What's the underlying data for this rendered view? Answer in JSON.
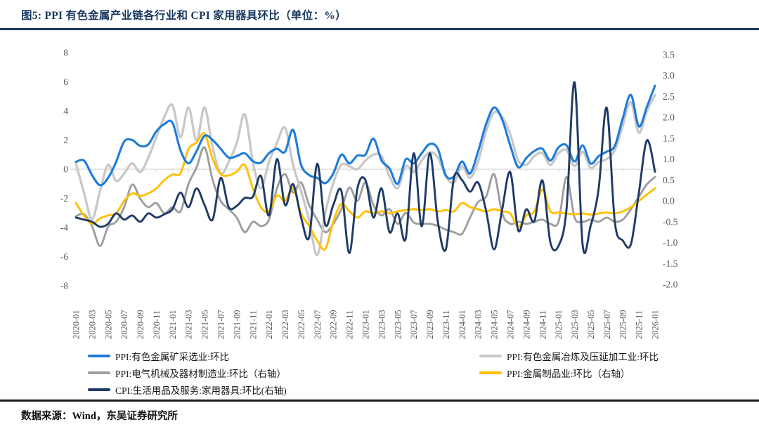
{
  "header": {
    "title": "图5:  PPI 有色金属产业链各行业和 CPI 家用器具环比（单位：%）"
  },
  "footer": {
    "source_text": "数据来源：Wind，东吴证券研究所"
  },
  "colors": {
    "title_navy": "#17375E",
    "axis_text": "#595959",
    "axis_line": "#D6D6D6"
  },
  "chart_data": {
    "type": "line",
    "title": "PPI 有色金属产业链各行业和 CPI 家用器具环比（单位：%）",
    "grid": "zero-baseline-only",
    "legend_position": "bottom",
    "x_count": 73,
    "x_labels_shown": [
      "2020-01",
      "2020-03",
      "2020-05",
      "2020-07",
      "2020-09",
      "2020-11",
      "2021-01",
      "2021-03",
      "2021-05",
      "2021-07",
      "2021-09",
      "2021-11",
      "2022-01",
      "2022-03",
      "2022-05",
      "2022-07",
      "2022-09",
      "2022-11",
      "2023-01",
      "2023-03",
      "2023-05",
      "2023-07",
      "2023-09",
      "2023-11",
      "2024-01",
      "2024-03",
      "2024-05",
      "2024-07",
      "2024-09",
      "2024-11",
      "2025-01",
      "2025-03",
      "2025-05",
      "2025-07",
      "2025-09",
      "2025-11",
      "2026-01"
    ],
    "left_axis": {
      "min": -8,
      "max": 8,
      "tick_labels": [
        "8",
        "6",
        "4",
        "2",
        "0",
        "-2",
        "-4",
        "-6",
        "-8"
      ]
    },
    "right_axis": {
      "min": -2.0,
      "max": 3.5,
      "tick_labels": [
        "3.5",
        "3.0",
        "2.5",
        "2.0",
        "1.5",
        "1.0",
        "0.5",
        "0.0",
        "-0.5",
        "-1.0",
        "-1.5",
        "-2.0"
      ]
    },
    "series": [
      {
        "name": "PPI:有色金属矿采选业:环比",
        "axis": "left",
        "color": "#1E7CD8",
        "width": 3.1,
        "values": [
          0.5,
          0.6,
          -0.4,
          -1.1,
          -0.6,
          0.5,
          1.9,
          2.0,
          1.6,
          1.7,
          2.6,
          3.1,
          3.2,
          1.3,
          0.4,
          1.25,
          2.3,
          2.0,
          1.4,
          0.8,
          0.9,
          1.1,
          0.55,
          0.45,
          1.1,
          1.4,
          1.2,
          2.7,
          0.3,
          -0.4,
          -0.6,
          -0.96,
          -0.3,
          1.0,
          0.4,
          0.94,
          1.0,
          2.1,
          0.6,
          0.05,
          -1.0,
          0.67,
          0.4,
          1.1,
          1.73,
          1.4,
          -0.43,
          -0.5,
          0.53,
          -0.3,
          1.2,
          3.1,
          4.24,
          3.4,
          1.64,
          0.14,
          0.77,
          1.25,
          1.4,
          0.6,
          1.5,
          1.64,
          0.53,
          1.64,
          0.39,
          0.9,
          1.2,
          1.6,
          3.5,
          5.1,
          2.94,
          4.3,
          5.73
        ]
      },
      {
        "name": "PPI:有色金属冶炼及压延加工业:环比",
        "axis": "left",
        "color": "#C8C8C8",
        "width": 3.3,
        "values": [
          0.43,
          -1.6,
          -3.42,
          -1.5,
          0.3,
          -0.8,
          -0.3,
          0.4,
          -0.2,
          0.8,
          2.2,
          3.6,
          4.4,
          2.2,
          4.24,
          1.98,
          4.24,
          1.5,
          -0.3,
          0.5,
          1.8,
          3.76,
          0.5,
          -1.3,
          0.5,
          1.8,
          2.85,
          0.3,
          -1.5,
          -3.5,
          -5.9,
          -3.0,
          -0.96,
          0.3,
          0.2,
          0.0,
          0.6,
          1.0,
          0.9,
          -0.5,
          -1.3,
          0.2,
          -0.2,
          0.6,
          1.16,
          0.8,
          -0.5,
          -0.92,
          0.2,
          -0.6,
          0.5,
          2.6,
          3.9,
          3.6,
          2.4,
          0.6,
          0.3,
          0.9,
          1.1,
          0.3,
          1.1,
          1.3,
          0.2,
          1.2,
          0.1,
          0.5,
          0.7,
          1.3,
          3.0,
          4.6,
          2.5,
          4.0,
          5.1
        ]
      },
      {
        "name": "PPI:电气机械及器材制造业:环比（右轴）",
        "axis": "right",
        "color": "#9E9E9E",
        "width": 2.9,
        "values": [
          -0.37,
          -0.32,
          -0.6,
          -1.08,
          -0.62,
          -0.5,
          -0.15,
          0.39,
          0.05,
          -0.15,
          -0.05,
          -0.3,
          -0.15,
          -0.25,
          0.4,
          0.8,
          1.28,
          0.5,
          0.0,
          -0.2,
          -0.4,
          -0.75,
          -0.5,
          -0.6,
          -0.45,
          0.3,
          0.64,
          0.2,
          0.44,
          -0.1,
          -0.45,
          -0.75,
          -0.55,
          -0.2,
          0.32,
          0.0,
          0.44,
          -0.1,
          -0.35,
          -0.2,
          -0.55,
          -0.29,
          -0.52,
          -0.55,
          -0.55,
          -0.6,
          -0.69,
          -0.75,
          -0.79,
          -0.4,
          -0.03,
          0.1,
          0.64,
          -0.3,
          -0.55,
          -0.5,
          -0.55,
          -0.5,
          -0.45,
          -0.55,
          -0.5,
          0.57,
          -0.4,
          -0.5,
          -0.45,
          -0.5,
          -0.4,
          -0.5,
          -0.45,
          -0.2,
          0.1,
          0.4,
          0.57
        ]
      },
      {
        "name": "PPI:金属制品业:环比（右轴）",
        "axis": "right",
        "color": "#FFC000",
        "width": 2.9,
        "values": [
          -0.05,
          -0.35,
          -0.55,
          -0.42,
          -0.35,
          -0.3,
          0.0,
          0.18,
          0.12,
          0.18,
          0.3,
          0.5,
          0.63,
          0.66,
          1.24,
          1.4,
          1.61,
          1.0,
          0.64,
          0.61,
          0.7,
          0.86,
          0.3,
          -0.15,
          -0.25,
          0.13,
          0.0,
          0.3,
          -0.3,
          -0.6,
          -0.95,
          -1.15,
          -0.5,
          -0.07,
          -0.25,
          -0.4,
          -0.25,
          -0.3,
          -0.25,
          -0.3,
          -0.25,
          -0.22,
          -0.2,
          -0.22,
          -0.2,
          -0.25,
          -0.22,
          -0.25,
          -0.05,
          -0.15,
          -0.2,
          -0.25,
          -0.2,
          -0.25,
          -0.3,
          -0.62,
          -0.35,
          -0.25,
          0.27,
          -0.25,
          -0.28,
          -0.3,
          -0.32,
          -0.3,
          -0.33,
          -0.3,
          -0.28,
          -0.3,
          -0.25,
          -0.15,
          0.0,
          0.15,
          0.3
        ]
      },
      {
        "name": "CPI:生活用品及服务:家用器具:环比(右轴)",
        "axis": "right",
        "color": "#1F3B66",
        "width": 2.9,
        "values": [
          -0.4,
          -0.45,
          -0.5,
          -0.62,
          -0.55,
          -0.3,
          -0.45,
          -0.35,
          -0.5,
          -0.3,
          -0.4,
          -0.32,
          -0.2,
          0.2,
          -0.15,
          0.3,
          -0.1,
          -0.45,
          0.55,
          -0.15,
          -0.12,
          0.07,
          0.1,
          0.6,
          -0.35,
          1.0,
          -0.1,
          0.4,
          -0.4,
          -0.87,
          0.89,
          -0.57,
          -0.1,
          0.24,
          -1.25,
          0.3,
          0.5,
          -0.4,
          0.3,
          -0.75,
          -0.3,
          -0.91,
          1.14,
          -0.61,
          1.14,
          -0.5,
          -1.16,
          0.55,
          0.5,
          0.22,
          0.44,
          -0.24,
          -1.16,
          -0.2,
          0.69,
          -0.71,
          -0.2,
          -0.49,
          0.49,
          -1.0,
          -1.08,
          -0.2,
          2.84,
          -1.05,
          -0.6,
          0.3,
          2.23,
          -0.5,
          -0.95,
          -1.04,
          0.2,
          1.45,
          0.7
        ]
      }
    ]
  }
}
